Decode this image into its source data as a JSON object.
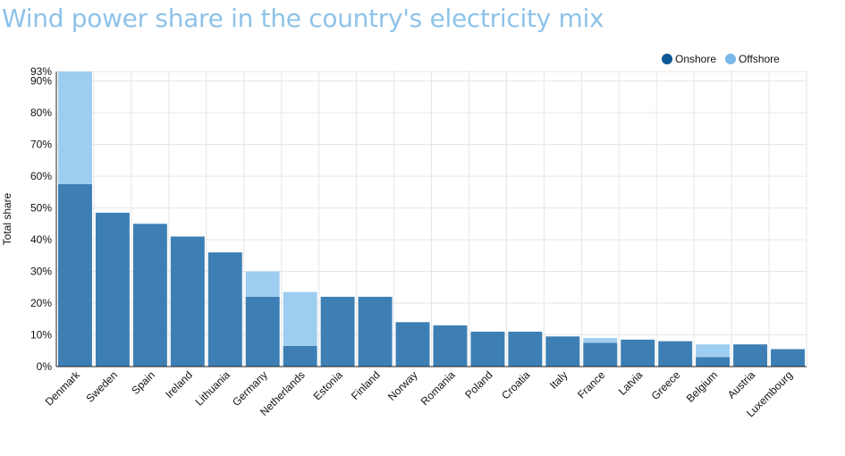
{
  "title": "Wind power share in the country's electricity mix",
  "colors": {
    "onshore": "#3d7fb4",
    "offshore": "#9dcdef",
    "onshore_legend": "#0d5896",
    "offshore_legend": "#79b8e6",
    "grid": "#e6e6e6"
  },
  "chart_data": {
    "type": "bar",
    "stacked": true,
    "ylabel": "Total share",
    "xlabel": "",
    "ylim": [
      0,
      93
    ],
    "y_ticks": [
      0,
      10,
      20,
      30,
      40,
      50,
      60,
      70,
      80,
      90,
      93
    ],
    "y_tick_labels": [
      "0%",
      "10%",
      "20%",
      "30%",
      "40%",
      "50%",
      "60%",
      "70%",
      "80%",
      "90%",
      "93%"
    ],
    "grid": true,
    "legend_position": "top-right",
    "categories": [
      "Denmark",
      "Sweden",
      "Spain",
      "Ireland",
      "Lithuania",
      "Germany",
      "Netherlands",
      "Estonia",
      "Finland",
      "Norway",
      "Romania",
      "Poland",
      "Croatia",
      "Italy",
      "France",
      "Latvia",
      "Greece",
      "Belgium",
      "Austria",
      "Luxembourg"
    ],
    "series": [
      {
        "name": "Onshore",
        "values": [
          57.5,
          48.5,
          45,
          41,
          36,
          22,
          6.5,
          22,
          22,
          14,
          13,
          11,
          11,
          9.5,
          7.5,
          8.5,
          8,
          3,
          7,
          5.5
        ]
      },
      {
        "name": "Offshore",
        "values": [
          35.5,
          0,
          0,
          0,
          0,
          8,
          17,
          0,
          0,
          0,
          0,
          0,
          0,
          0,
          1.5,
          0,
          0,
          4,
          0,
          0
        ]
      }
    ]
  }
}
